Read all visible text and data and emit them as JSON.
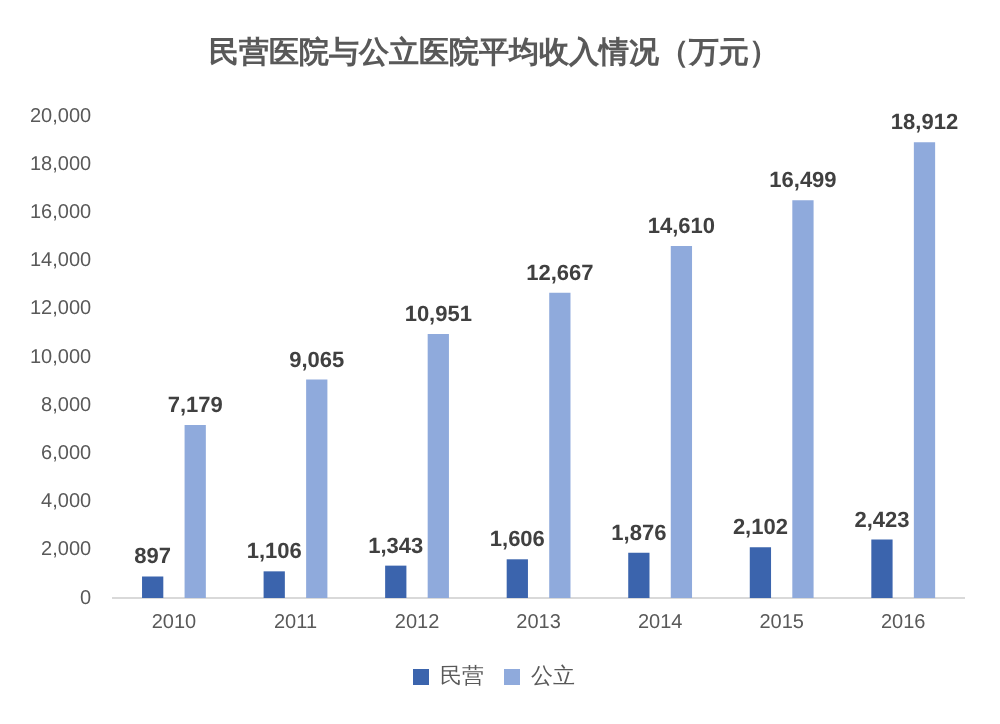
{
  "chart_data": {
    "type": "bar",
    "title": "民营医院与公立医院平均收入情况（万元）",
    "categories": [
      "2010",
      "2011",
      "2012",
      "2013",
      "2014",
      "2015",
      "2016"
    ],
    "series": [
      {
        "name": "民营",
        "color": "#3b64ad",
        "values": [
          897,
          1106,
          1343,
          1606,
          1876,
          2102,
          2423
        ],
        "value_labels": [
          "897",
          "1,106",
          "1,343",
          "1,606",
          "1,876",
          "2,102",
          "2,423"
        ]
      },
      {
        "name": "公立",
        "color": "#8faadc",
        "values": [
          7179,
          9065,
          10951,
          12667,
          14610,
          16499,
          18912
        ],
        "value_labels": [
          "7,179",
          "9,065",
          "10,951",
          "12,667",
          "14,610",
          "16,499",
          "18,912"
        ]
      }
    ],
    "ylim": [
      0,
      20000
    ],
    "yticks": [
      0,
      {
        "value": 2000,
        "label": "2,000"
      },
      {
        "value": 4000,
        "label": "4,000"
      },
      {
        "value": 6000,
        "label": "6,000"
      },
      {
        "value": 8000,
        "label": "8,000"
      },
      {
        "value": 10000,
        "label": "10,000"
      },
      {
        "value": 12000,
        "label": "12,000"
      },
      {
        "value": 14000,
        "label": "14,000"
      },
      {
        "value": 16000,
        "label": "16,000"
      },
      {
        "value": 18000,
        "label": "18,000"
      },
      {
        "value": 20000,
        "label": "20,000"
      }
    ],
    "grid": false,
    "legend": "bottom"
  }
}
